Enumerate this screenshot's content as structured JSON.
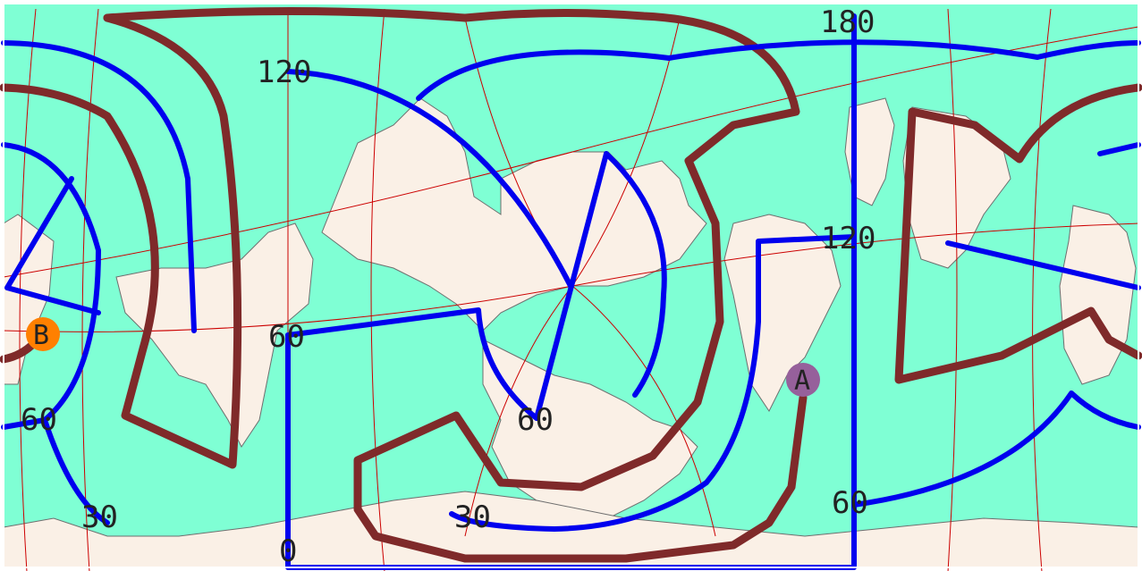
{
  "map": {
    "colors": {
      "ocean": "#7fffd4",
      "land": "#faf0e6",
      "graticule": "#cc0000",
      "blue_route": "#0000ee",
      "brown_route": "#7f2a2a",
      "marker_a": "#96609b",
      "marker_b": "#ff8000"
    },
    "grid_labels": {
      "top_120": "120",
      "top_180": "180",
      "mid_60_left": "60",
      "mid_120_right": "120",
      "low_60_far_left": "60",
      "low_60_center": "60",
      "low_60_right": "60",
      "low_30_left": "30",
      "low_30_center": "30",
      "bottom_0": "0"
    },
    "markers": {
      "a": {
        "label": "A"
      },
      "b": {
        "label": "B"
      }
    }
  }
}
